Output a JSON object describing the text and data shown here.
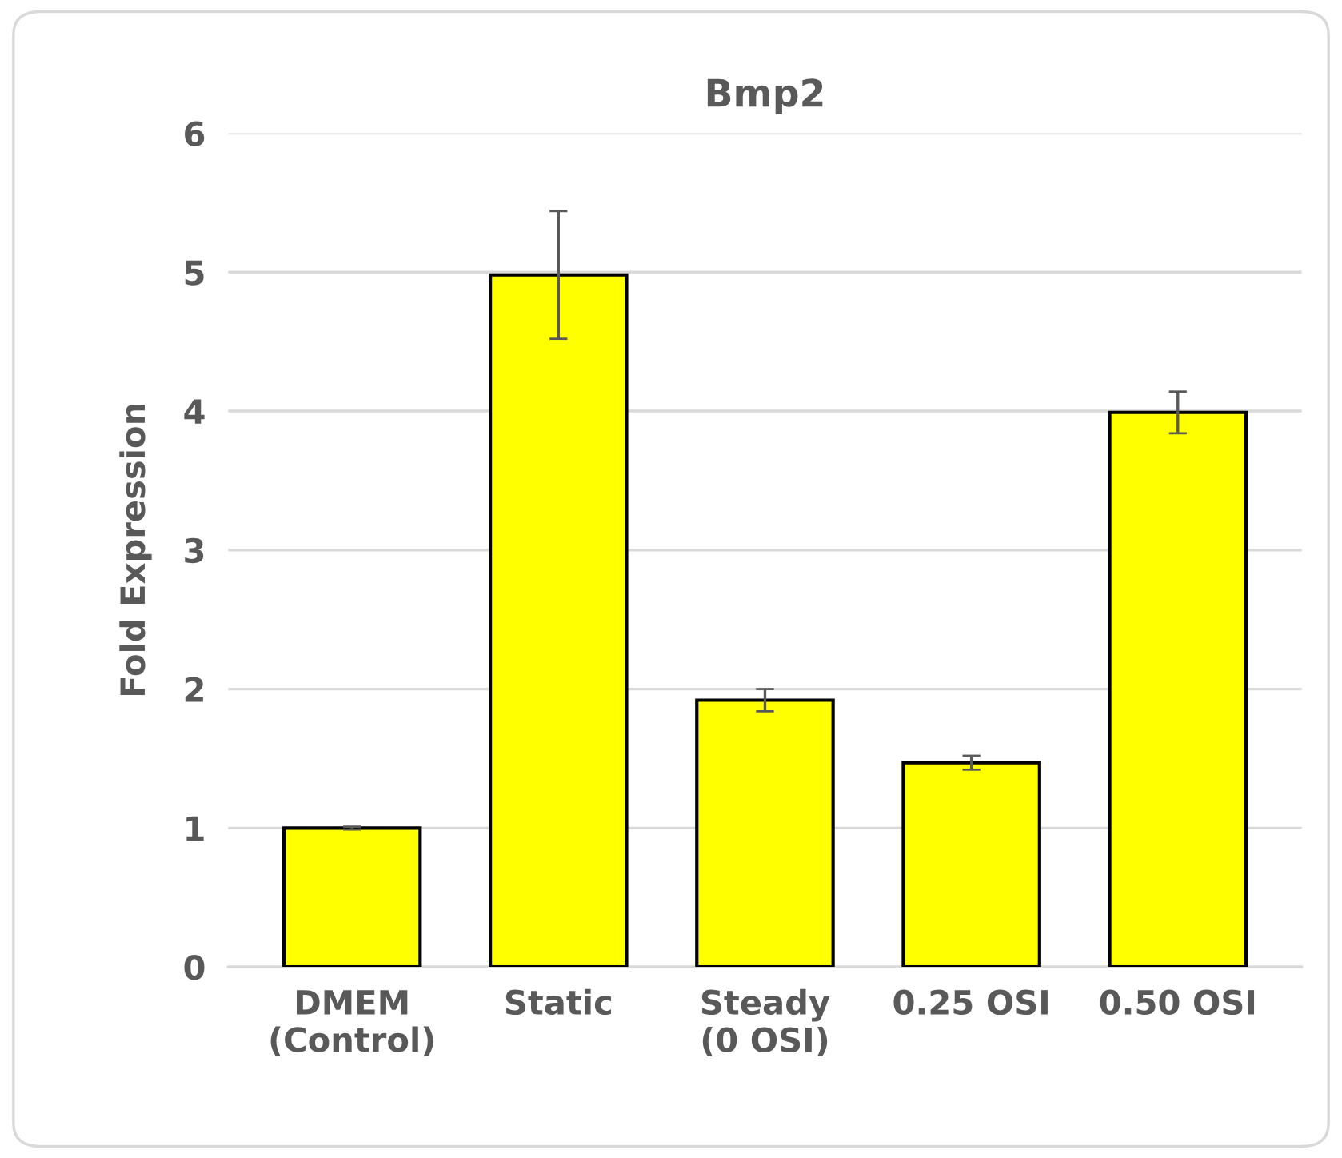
{
  "chart_data": {
    "type": "bar",
    "title": "Bmp2",
    "ylabel": "Fold Expression",
    "categories": [
      "DMEM\n(Control)",
      "Static",
      "Steady\n(0 OSI)",
      "0.25 OSI",
      "0.50 OSI"
    ],
    "values": [
      1.0,
      4.98,
      1.92,
      1.47,
      3.99
    ],
    "errors": [
      0.01,
      0.46,
      0.08,
      0.05,
      0.15
    ],
    "color": "#ffff00",
    "ylim": [
      0,
      6
    ],
    "yticks": [
      0,
      1,
      2,
      3,
      4,
      5,
      6
    ],
    "grid": "y",
    "legend": false
  }
}
